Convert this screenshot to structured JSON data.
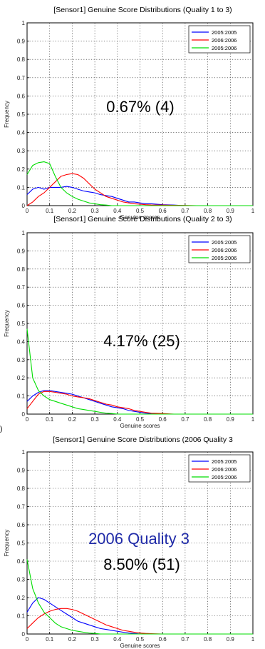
{
  "chart_data": [
    {
      "type": "line",
      "title": "[Sensor1] Genuine Score Distributions (Quality 1 to 3)",
      "xlabel": "Genuine scores",
      "ylabel": "Frequency",
      "xlim": [
        0,
        1
      ],
      "ylim": [
        0,
        1
      ],
      "xticks": [
        "0",
        "0.1",
        "0.2",
        "0.3",
        "0.4",
        "0.5",
        "0.6",
        "0.7",
        "0.8",
        "0.9",
        "1"
      ],
      "yticks": [
        "0",
        "0.1",
        "0.2",
        "0.3",
        "0.4",
        "0.5",
        "0.6",
        "0.7",
        "0.8",
        "0.9",
        "1"
      ],
      "grid": true,
      "legend_position": "top-right",
      "annotation": "0.67% (4)",
      "annotation_sub": "",
      "x": [
        0,
        0.025,
        0.05,
        0.075,
        0.1,
        0.125,
        0.15,
        0.175,
        0.2,
        0.225,
        0.25,
        0.275,
        0.3,
        0.325,
        0.35,
        0.375,
        0.4,
        0.425,
        0.45,
        0.475,
        0.5,
        0.525,
        0.55,
        0.6,
        0.65,
        0.7,
        0.75,
        0.8,
        0.9,
        1.0
      ],
      "series": [
        {
          "name": "2005:2005",
          "color": "#0000ff",
          "values": [
            0.06,
            0.09,
            0.1,
            0.09,
            0.1,
            0.1,
            0.1,
            0.105,
            0.1,
            0.09,
            0.08,
            0.075,
            0.07,
            0.06,
            0.055,
            0.05,
            0.04,
            0.03,
            0.02,
            0.02,
            0.015,
            0.01,
            0.01,
            0.005,
            0.003,
            0.0,
            0.0,
            0.0,
            0.0,
            0.0
          ]
        },
        {
          "name": "2006:2006",
          "color": "#ff0000",
          "values": [
            0.0,
            0.02,
            0.05,
            0.07,
            0.1,
            0.13,
            0.16,
            0.17,
            0.175,
            0.17,
            0.15,
            0.12,
            0.09,
            0.07,
            0.05,
            0.04,
            0.03,
            0.02,
            0.015,
            0.01,
            0.008,
            0.005,
            0.004,
            0.003,
            0.002,
            0.001,
            0.0,
            0.0,
            0.0,
            0.0
          ]
        },
        {
          "name": "2005:2006",
          "color": "#00dd00",
          "values": [
            0.17,
            0.22,
            0.235,
            0.24,
            0.23,
            0.16,
            0.1,
            0.07,
            0.05,
            0.035,
            0.025,
            0.015,
            0.01,
            0.005,
            0.003,
            0.0,
            0.0,
            0.0,
            0.0,
            0.0,
            0.0,
            0.0,
            0.0,
            0.0,
            0.0,
            0.0,
            0.0,
            0.0,
            0.0,
            0.0
          ]
        }
      ]
    },
    {
      "type": "line",
      "title": "[Sensor1] Genuine Score Distributions (Quality 2 to 3)",
      "xlabel": "Genuine scores",
      "ylabel": "Frequency",
      "xlim": [
        0,
        1
      ],
      "ylim": [
        0,
        1
      ],
      "xticks": [
        "0",
        "0.1",
        "0.2",
        "0.3",
        "0.4",
        "0.5",
        "0.6",
        "0.7",
        "0.8",
        "0.9",
        "1"
      ],
      "yticks": [
        "0",
        "0.1",
        "0.2",
        "0.3",
        "0.4",
        "0.5",
        "0.6",
        "0.7",
        "0.8",
        "0.9",
        "1"
      ],
      "grid": true,
      "legend_position": "top-right",
      "annotation": "4.17% (25)",
      "annotation_sub": "",
      "x": [
        0,
        0.025,
        0.05,
        0.075,
        0.1,
        0.125,
        0.15,
        0.175,
        0.2,
        0.225,
        0.25,
        0.275,
        0.3,
        0.325,
        0.35,
        0.375,
        0.4,
        0.425,
        0.45,
        0.475,
        0.5,
        0.525,
        0.55,
        0.6,
        0.65,
        0.7,
        0.75,
        0.8,
        0.9,
        1.0
      ],
      "series": [
        {
          "name": "2005:2005",
          "color": "#0000ff",
          "values": [
            0.07,
            0.1,
            0.12,
            0.13,
            0.13,
            0.125,
            0.12,
            0.115,
            0.11,
            0.1,
            0.09,
            0.08,
            0.07,
            0.06,
            0.05,
            0.04,
            0.035,
            0.03,
            0.02,
            0.015,
            0.01,
            0.005,
            0.003,
            0.0,
            0.0,
            0.0,
            0.0,
            0.0,
            0.0,
            0.0
          ]
        },
        {
          "name": "2006:2006",
          "color": "#ff0000",
          "values": [
            0.03,
            0.07,
            0.11,
            0.125,
            0.125,
            0.12,
            0.115,
            0.11,
            0.1,
            0.095,
            0.09,
            0.085,
            0.075,
            0.065,
            0.055,
            0.05,
            0.04,
            0.035,
            0.03,
            0.02,
            0.015,
            0.01,
            0.005,
            0.003,
            0.0,
            0.0,
            0.0,
            0.0,
            0.0,
            0.0
          ]
        },
        {
          "name": "2005:2006",
          "color": "#00dd00",
          "values": [
            0.47,
            0.2,
            0.13,
            0.1,
            0.08,
            0.07,
            0.06,
            0.05,
            0.04,
            0.03,
            0.025,
            0.02,
            0.015,
            0.01,
            0.005,
            0.003,
            0.0,
            0.0,
            0.0,
            0.0,
            0.0,
            0.0,
            0.0,
            0.0,
            0.0,
            0.0,
            0.0,
            0.0,
            0.0,
            0.0
          ]
        }
      ]
    },
    {
      "type": "line",
      "title": "[Sensor1] Genuine Score Distributions (2006 Quality 3",
      "xlabel": "Genuine scores",
      "ylabel": "Frequency",
      "xlim": [
        0,
        1
      ],
      "ylim": [
        0,
        1
      ],
      "xticks": [
        "0",
        "0.1",
        "0.2",
        "0.3",
        "0.4",
        "0.5",
        "0.6",
        "0.7",
        "0.8",
        "0.9",
        "1"
      ],
      "yticks": [
        "0",
        "0.1",
        "0.2",
        "0.3",
        "0.4",
        "0.5",
        "0.6",
        "0.7",
        "0.8",
        "0.9",
        "1"
      ],
      "grid": true,
      "legend_position": "top-right",
      "annotation": "8.50% (51)",
      "annotation_sub": "2006 Quality 3",
      "x": [
        0,
        0.025,
        0.05,
        0.075,
        0.1,
        0.125,
        0.15,
        0.175,
        0.2,
        0.225,
        0.25,
        0.275,
        0.3,
        0.325,
        0.35,
        0.375,
        0.4,
        0.425,
        0.45,
        0.475,
        0.5,
        0.525,
        0.55,
        0.6,
        0.65,
        0.7,
        0.75,
        0.8,
        0.9,
        1.0
      ],
      "series": [
        {
          "name": "2005:2005",
          "color": "#0000ff",
          "values": [
            0.12,
            0.17,
            0.2,
            0.19,
            0.17,
            0.15,
            0.13,
            0.11,
            0.09,
            0.07,
            0.06,
            0.05,
            0.04,
            0.03,
            0.025,
            0.02,
            0.015,
            0.01,
            0.005,
            0.003,
            0.0,
            0.0,
            0.0,
            0.0,
            0.0,
            0.0,
            0.0,
            0.0,
            0.0,
            0.0
          ]
        },
        {
          "name": "2006:2006",
          "color": "#ff0000",
          "values": [
            0.03,
            0.06,
            0.09,
            0.11,
            0.125,
            0.135,
            0.14,
            0.14,
            0.135,
            0.125,
            0.11,
            0.095,
            0.08,
            0.065,
            0.05,
            0.04,
            0.03,
            0.02,
            0.015,
            0.01,
            0.005,
            0.003,
            0.002,
            0.0,
            0.0,
            0.0,
            0.0,
            0.0,
            0.0,
            0.0
          ]
        },
        {
          "name": "2005:2006",
          "color": "#00dd00",
          "values": [
            0.41,
            0.25,
            0.17,
            0.12,
            0.09,
            0.06,
            0.04,
            0.03,
            0.02,
            0.015,
            0.01,
            0.005,
            0.003,
            0.0,
            0.0,
            0.0,
            0.0,
            0.0,
            0.0,
            0.0,
            0.0,
            0.0,
            0.0,
            0.0,
            0.0,
            0.0,
            0.0,
            0.0,
            0.0,
            0.0
          ]
        }
      ]
    }
  ],
  "side_marker": ")"
}
